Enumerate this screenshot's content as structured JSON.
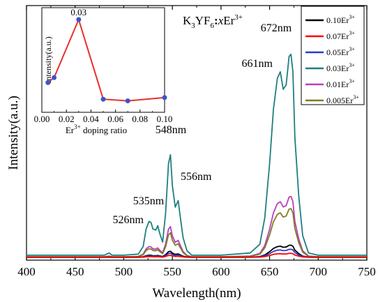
{
  "chart_data": [
    {
      "type": "line",
      "title": "",
      "formula": {
        "base": "K",
        "sub1": "3",
        "mid": "YF",
        "sub2": "6",
        "colon": ":",
        "var": "x",
        "ion": "Er",
        "sup": "3+"
      },
      "xlabel": "Wavelength(nm)",
      "ylabel": "Intensity(a.u.)",
      "xlim": [
        400,
        750
      ],
      "xticks": [
        400,
        450,
        500,
        550,
        600,
        650,
        700,
        750
      ],
      "yticks_shown": false,
      "legend_position": "top-right",
      "annotations": [
        {
          "text": "526nm",
          "x": 526
        },
        {
          "text": "535nm",
          "x": 535
        },
        {
          "text": "548nm",
          "x": 548
        },
        {
          "text": "556nm",
          "x": 556
        },
        {
          "text": "661nm",
          "x": 661
        },
        {
          "text": "672nm",
          "x": 672
        }
      ],
      "band_template_note": "shared emission profile, each series scaled",
      "profile": {
        "x": [
          400,
          480,
          485,
          488,
          500,
          515,
          520,
          523,
          526,
          528,
          530,
          533,
          535,
          537,
          540,
          543,
          546,
          548,
          550,
          553,
          556,
          558,
          561,
          565,
          570,
          600,
          630,
          640,
          645,
          650,
          654,
          658,
          661,
          664,
          667,
          670,
          672,
          674,
          676,
          680,
          684,
          690,
          700,
          750
        ],
        "y": [
          0.01,
          0.01,
          0.02,
          0.01,
          0.01,
          0.015,
          0.05,
          0.13,
          0.165,
          0.16,
          0.13,
          0.125,
          0.145,
          0.11,
          0.07,
          0.2,
          0.43,
          0.47,
          0.33,
          0.23,
          0.26,
          0.19,
          0.09,
          0.03,
          0.01,
          0.01,
          0.02,
          0.06,
          0.18,
          0.43,
          0.68,
          0.82,
          0.85,
          0.77,
          0.79,
          0.92,
          0.93,
          0.85,
          0.55,
          0.28,
          0.1,
          0.02,
          0.01,
          0.01
        ]
      },
      "series": [
        {
          "name": "0.10Er",
          "sup": "3+",
          "color": "#000000",
          "scale": 0.06
        },
        {
          "name": "0.07Er",
          "sup": "3+",
          "color": "#ff0000",
          "scale": 0.02
        },
        {
          "name": "0.05Er",
          "sup": "3+",
          "color": "#2b3bcc",
          "scale": 0.04
        },
        {
          "name": "0.03Er",
          "sup": "3+",
          "color": "#1e7f7f",
          "scale": 1.0
        },
        {
          "name": "0.01Er",
          "sup": "3+",
          "color": "#b93fb9",
          "scale": 0.3
        },
        {
          "name": "0.005Er",
          "sup": "3+",
          "color": "#7d7d24",
          "scale": 0.24
        }
      ]
    },
    {
      "type": "line",
      "inset": true,
      "xlabel_base": "Er",
      "xlabel_sup": "3+",
      "xlabel_rest": " doping ratio",
      "ylabel": "Intensity(a.u.)",
      "xlim": [
        0.0,
        0.1
      ],
      "xticks": [
        0.0,
        0.02,
        0.04,
        0.06,
        0.08,
        0.1
      ],
      "xtick_labels": [
        "0.00",
        "0.02",
        "0.04",
        "0.06",
        "0.08",
        "0.10"
      ],
      "x": [
        0.005,
        0.01,
        0.03,
        0.05,
        0.07,
        0.1
      ],
      "y": [
        0.24,
        0.3,
        1.0,
        0.04,
        0.02,
        0.06
      ],
      "point_label": "0.03",
      "line_color": "#e8302a",
      "marker_color": "#3b55c8"
    }
  ]
}
